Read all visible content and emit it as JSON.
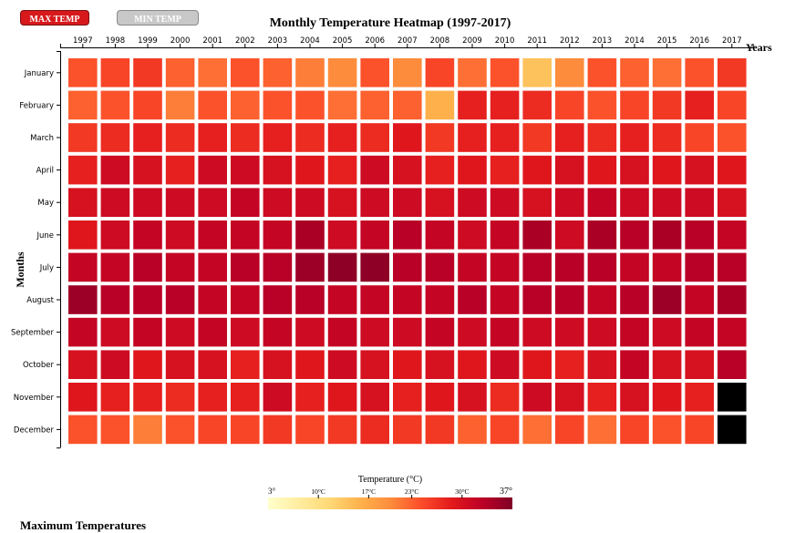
{
  "controls": {
    "max_label": "MAX TEMP",
    "min_label": "MIN TEMP"
  },
  "footer": {
    "title": "Maximum Temperatures"
  },
  "chart_data": {
    "type": "heatmap",
    "title": "Monthly Temperature Heatmap (1997-2017)",
    "xlabel": "Years",
    "ylabel": "Months",
    "x": [
      1997,
      1998,
      1999,
      2000,
      2001,
      2002,
      2003,
      2004,
      2005,
      2006,
      2007,
      2008,
      2009,
      2010,
      2011,
      2012,
      2013,
      2014,
      2015,
      2016,
      2017
    ],
    "y": [
      "January",
      "February",
      "March",
      "April",
      "May",
      "June",
      "July",
      "August",
      "September",
      "October",
      "November",
      "December"
    ],
    "values": [
      [
        24,
        25,
        26,
        23,
        22,
        24,
        23,
        21,
        20,
        24,
        20,
        25,
        22,
        24,
        14,
        20,
        24,
        23,
        22,
        24,
        26
      ],
      [
        23,
        24,
        25,
        21,
        24,
        23,
        24,
        24,
        22,
        23,
        23,
        16,
        28,
        28,
        27,
        25,
        24,
        25,
        26,
        28,
        25
      ],
      [
        26,
        27,
        28,
        27,
        28,
        27,
        28,
        27,
        28,
        27,
        29,
        26,
        28,
        28,
        26,
        28,
        27,
        28,
        27,
        25,
        24
      ],
      [
        28,
        31,
        30,
        28,
        31,
        31,
        30,
        29,
        28,
        31,
        30,
        28,
        29,
        28,
        29,
        30,
        29,
        30,
        29,
        30,
        29
      ],
      [
        30,
        31,
        31,
        31,
        31,
        32,
        31,
        31,
        30,
        31,
        31,
        30,
        31,
        31,
        30,
        31,
        32,
        31,
        31,
        31,
        30
      ],
      [
        29,
        31,
        32,
        31,
        32,
        32,
        32,
        34,
        31,
        32,
        33,
        32,
        31,
        32,
        34,
        31,
        34,
        33,
        34,
        33,
        32
      ],
      [
        32,
        32,
        33,
        32,
        32,
        33,
        33,
        35,
        36,
        36,
        33,
        33,
        32,
        32,
        33,
        33,
        33,
        32,
        32,
        33,
        33
      ],
      [
        35,
        33,
        33,
        33,
        32,
        32,
        33,
        33,
        32,
        32,
        32,
        32,
        33,
        32,
        33,
        33,
        32,
        33,
        35,
        32,
        34
      ],
      [
        32,
        31,
        32,
        31,
        32,
        31,
        32,
        31,
        32,
        31,
        31,
        32,
        31,
        32,
        31,
        31,
        31,
        32,
        31,
        32,
        32
      ],
      [
        30,
        31,
        29,
        30,
        30,
        28,
        30,
        29,
        31,
        30,
        29,
        30,
        29,
        31,
        29,
        28,
        30,
        32,
        30,
        30,
        33
      ],
      [
        29,
        28,
        28,
        27,
        28,
        28,
        31,
        28,
        29,
        30,
        28,
        29,
        30,
        27,
        31,
        30,
        28,
        30,
        29,
        28,
        null
      ],
      [
        24,
        24,
        21,
        24,
        25,
        25,
        26,
        25,
        26,
        27,
        26,
        26,
        23,
        25,
        22,
        25,
        22,
        25,
        24,
        25,
        null
      ]
    ],
    "missing_color": "#000000",
    "legend": {
      "title": "Temperature (°C)",
      "min_label": "3°",
      "max_label": "37°",
      "ticks": [
        "10°C",
        "17°C",
        "23°C",
        "30°C"
      ],
      "tick_values": [
        10,
        17,
        23,
        30
      ],
      "domain": [
        3,
        37
      ]
    },
    "color_scale": [
      "#ffffcc",
      "#ffeda0",
      "#fed976",
      "#feb24c",
      "#fd8d3c",
      "#fc4e2a",
      "#e31a1c",
      "#bd0026",
      "#800026"
    ]
  }
}
